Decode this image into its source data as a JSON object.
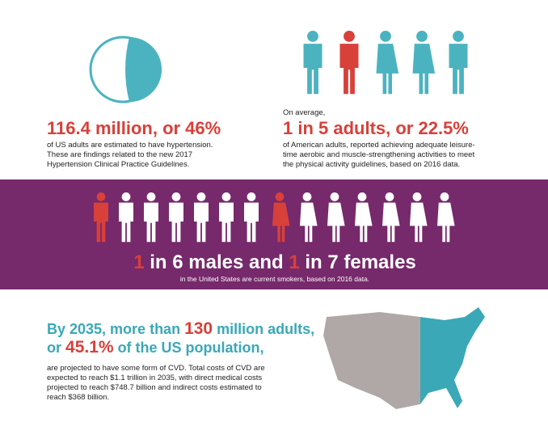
{
  "hypertension": {
    "headline": "116.4 million, or 46%",
    "body": [
      "of US adults are estimated to have hypertension.",
      "These are findings related to the new 2017",
      "Hypertension Clinical Practice Guidelines."
    ]
  },
  "activity": {
    "intro": "On average,",
    "headline": "1 in 5 adults, or 22.5%",
    "body": [
      "of American adults, reported achieving adequate leisure-",
      "time aerobic and muscle-strengthening activities to meet",
      "the physical activity guidelines, based on 2016 data."
    ]
  },
  "smoking": {
    "headline": [
      "1",
      " in 6 males and ",
      "1",
      " in 7 females"
    ],
    "body": "in the United States are current smokers, based on 2016 data."
  },
  "cvd": {
    "headline": [
      [
        "By 2035, more than ",
        "130",
        " million adults,"
      ],
      [
        "or ",
        "45.1%",
        " of the US population,"
      ]
    ],
    "body": [
      "are projected to have some form of CVD. Total costs of CVD are",
      "expected to reach $1.1 trillion in 2035, with direct medical costs",
      "projected to reach $748.7 billion and indirect costs estimated to",
      "reach $368 billion."
    ]
  }
}
